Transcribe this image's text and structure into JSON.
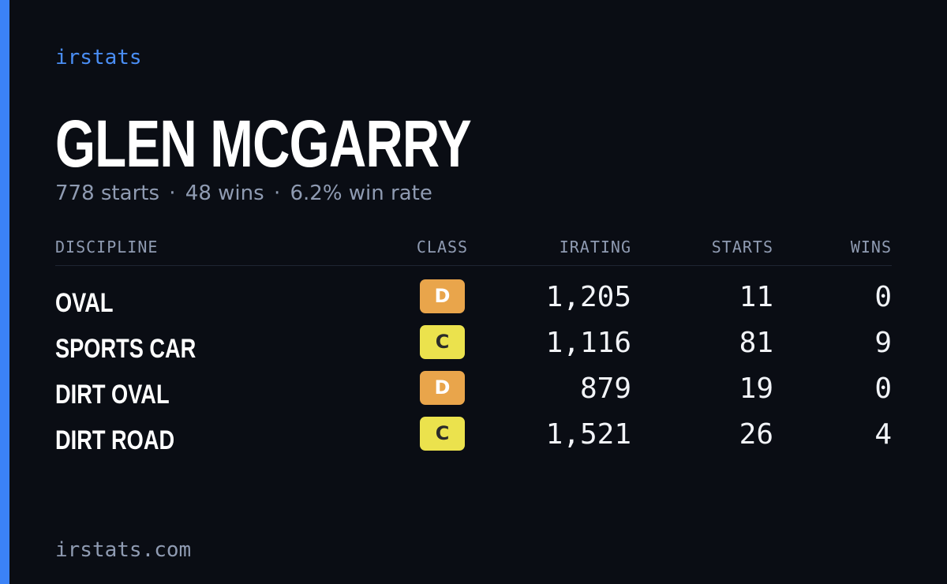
{
  "brand": "irstats",
  "player": {
    "name": "GLEN MCGARRY",
    "starts_text": "778 starts",
    "wins_text": "48 wins",
    "win_rate_text": "6.2% win rate",
    "separator": "·"
  },
  "table": {
    "headers": {
      "discipline": "DISCIPLINE",
      "class": "CLASS",
      "irating": "IRATING",
      "starts": "STARTS",
      "wins": "WINS"
    },
    "rows": [
      {
        "discipline": "OVAL",
        "class": "D",
        "irating": "1,205",
        "starts": "11",
        "wins": "0"
      },
      {
        "discipline": "SPORTS CAR",
        "class": "C",
        "irating": "1,116",
        "starts": "81",
        "wins": "9"
      },
      {
        "discipline": "DIRT OVAL",
        "class": "D",
        "irating": "879",
        "starts": "19",
        "wins": "0"
      },
      {
        "discipline": "DIRT ROAD",
        "class": "C",
        "irating": "1,521",
        "starts": "26",
        "wins": "4"
      }
    ]
  },
  "class_colors": {
    "D": {
      "bg": "#e9a54b",
      "fg": "#ffffff"
    },
    "C": {
      "bg": "#ebe24d",
      "fg": "#2a2a2a"
    }
  },
  "colors": {
    "background": "#0a0d14",
    "accent": "#3b82f6",
    "muted_text": "#8f9bb2"
  },
  "footer": "irstats.com"
}
